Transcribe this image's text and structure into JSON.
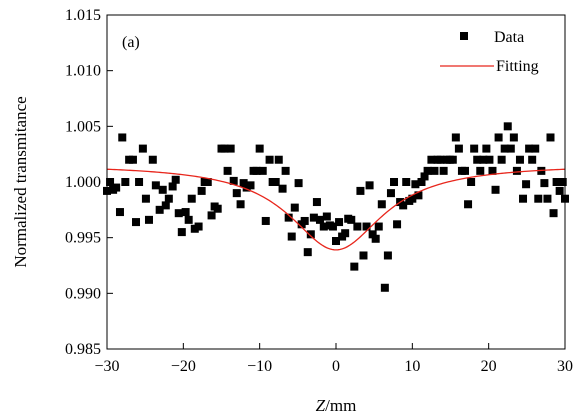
{
  "chart_data": {
    "type": "scatter",
    "panel_label": "(a)",
    "xlabel_italic": "Z",
    "xlabel_unit": "/mm",
    "ylabel": "Normalized transmitance",
    "xlim": [
      -30,
      30
    ],
    "ylim": [
      0.985,
      1.015
    ],
    "xticks": [
      -30,
      -20,
      -10,
      0,
      10,
      20,
      30
    ],
    "xtick_labels": [
      "−30",
      "−20",
      "−10",
      "0",
      "10",
      "20",
      "30"
    ],
    "yticks": [
      0.985,
      0.99,
      0.995,
      1.0,
      1.005,
      1.01,
      1.015
    ],
    "ytick_labels": [
      "0.985",
      "0.990",
      "0.995",
      "1.000",
      "1.005",
      "1.010",
      "1.015"
    ],
    "grid": false,
    "legend_position": "top-right",
    "series": [
      {
        "name": "Data",
        "marker": "square",
        "color": "#000000",
        "points": [
          [
            -30.0,
            0.9992
          ],
          [
            -29.6,
            1.0
          ],
          [
            -29.2,
            0.9993
          ],
          [
            -28.8,
            0.9995
          ],
          [
            -28.3,
            0.9973
          ],
          [
            -28.0,
            1.004
          ],
          [
            -27.6,
            1.0
          ],
          [
            -27.1,
            1.002
          ],
          [
            -26.6,
            1.002
          ],
          [
            -26.2,
            0.9964
          ],
          [
            -25.8,
            1.0
          ],
          [
            -25.3,
            1.003
          ],
          [
            -24.9,
            0.9985
          ],
          [
            -24.5,
            0.9966
          ],
          [
            -24.0,
            1.002
          ],
          [
            -23.6,
            0.9997
          ],
          [
            -23.1,
            0.9975
          ],
          [
            -22.7,
            0.9993
          ],
          [
            -22.3,
            0.9979
          ],
          [
            -21.9,
            0.9985
          ],
          [
            -21.4,
            0.9996
          ],
          [
            -21.0,
            1.0002
          ],
          [
            -20.6,
            0.9972
          ],
          [
            -20.2,
            0.9955
          ],
          [
            -19.7,
            0.9973
          ],
          [
            -19.3,
            0.9966
          ],
          [
            -18.9,
            0.9985
          ],
          [
            -18.5,
            0.9958
          ],
          [
            -18.0,
            0.996
          ],
          [
            -17.6,
            0.9992
          ],
          [
            -17.2,
            1.0
          ],
          [
            -16.8,
            1.0
          ],
          [
            -16.3,
            0.997
          ],
          [
            -15.9,
            0.9978
          ],
          [
            -15.5,
            0.9976
          ],
          [
            -15.0,
            1.003
          ],
          [
            -14.6,
            1.003
          ],
          [
            -14.2,
            1.001
          ],
          [
            -13.8,
            1.003
          ],
          [
            -13.4,
            1.0001
          ],
          [
            -13.0,
            0.999
          ],
          [
            -12.5,
            0.998
          ],
          [
            -12.1,
            0.9999
          ],
          [
            -11.7,
            0.9995
          ],
          [
            -11.2,
            0.9997
          ],
          [
            -10.8,
            1.001
          ],
          [
            -10.4,
            1.001
          ],
          [
            -10.0,
            1.003
          ],
          [
            -9.6,
            1.001
          ],
          [
            -9.2,
            0.9965
          ],
          [
            -8.7,
            1.002
          ],
          [
            -8.3,
            1.0
          ],
          [
            -7.9,
            1.0
          ],
          [
            -7.5,
            1.002
          ],
          [
            -7.0,
            0.9994
          ],
          [
            -6.6,
            1.001
          ],
          [
            -6.2,
            0.9968
          ],
          [
            -5.8,
            0.9951
          ],
          [
            -5.4,
            0.9977
          ],
          [
            -4.9,
            0.9999
          ],
          [
            -4.5,
            0.9962
          ],
          [
            -4.1,
            0.9965
          ],
          [
            -3.7,
            0.9937
          ],
          [
            -3.3,
            0.9953
          ],
          [
            -2.9,
            0.9968
          ],
          [
            -2.5,
            0.9982
          ],
          [
            -2.1,
            0.9966
          ],
          [
            -1.6,
            0.996
          ],
          [
            -1.2,
            0.9969
          ],
          [
            -0.8,
            0.9961
          ],
          [
            -0.4,
            0.996
          ],
          [
            0.0,
            0.9947
          ],
          [
            0.4,
            0.9964
          ],
          [
            0.8,
            0.9951
          ],
          [
            1.2,
            0.9954
          ],
          [
            1.6,
            0.9967
          ],
          [
            2.0,
            0.9966
          ],
          [
            2.4,
            0.9924
          ],
          [
            2.8,
            0.996
          ],
          [
            3.2,
            0.9992
          ],
          [
            3.6,
            0.9934
          ],
          [
            4.0,
            0.996
          ],
          [
            4.4,
            0.9997
          ],
          [
            4.8,
            0.9953
          ],
          [
            5.2,
            0.9949
          ],
          [
            5.6,
            0.996
          ],
          [
            6.0,
            0.998
          ],
          [
            6.4,
            0.9905
          ],
          [
            6.8,
            0.9934
          ],
          [
            7.2,
            0.999
          ],
          [
            7.6,
            1.0
          ],
          [
            8.0,
            0.9962
          ],
          [
            8.4,
            0.9982
          ],
          [
            8.8,
            0.9979
          ],
          [
            9.2,
            1.0
          ],
          [
            9.6,
            0.9983
          ],
          [
            10.0,
            0.9985
          ],
          [
            10.4,
            0.9998
          ],
          [
            10.8,
            0.9988
          ],
          [
            11.2,
            1.0
          ],
          [
            11.6,
            1.0005
          ],
          [
            12.0,
            1.001
          ],
          [
            12.5,
            1.002
          ],
          [
            12.9,
            1.001
          ],
          [
            13.3,
            1.002
          ],
          [
            13.7,
            1.002
          ],
          [
            14.1,
            1.001
          ],
          [
            14.5,
            1.002
          ],
          [
            14.9,
            1.002
          ],
          [
            15.3,
            1.002
          ],
          [
            15.7,
            1.004
          ],
          [
            16.1,
            1.003
          ],
          [
            16.5,
            1.001
          ],
          [
            16.9,
            1.001
          ],
          [
            17.3,
            0.998
          ],
          [
            17.7,
            1.0
          ],
          [
            18.1,
            1.003
          ],
          [
            18.5,
            1.002
          ],
          [
            18.9,
            1.001
          ],
          [
            19.3,
            1.002
          ],
          [
            19.7,
            1.003
          ],
          [
            20.1,
            1.002
          ],
          [
            20.5,
            1.001
          ],
          [
            20.9,
            0.9993
          ],
          [
            21.3,
            1.004
          ],
          [
            21.7,
            1.002
          ],
          [
            22.1,
            1.003
          ],
          [
            22.5,
            1.005
          ],
          [
            22.9,
            1.003
          ],
          [
            23.3,
            1.004
          ],
          [
            23.7,
            1.001
          ],
          [
            24.1,
            1.002
          ],
          [
            24.5,
            0.9985
          ],
          [
            24.9,
            0.9998
          ],
          [
            25.3,
            1.003
          ],
          [
            25.7,
            1.002
          ],
          [
            26.1,
            1.003
          ],
          [
            26.5,
            0.9985
          ],
          [
            26.9,
            1.001
          ],
          [
            27.3,
            0.9999
          ],
          [
            27.7,
            0.9985
          ],
          [
            28.1,
            1.004
          ],
          [
            28.5,
            0.9972
          ],
          [
            28.9,
            1.0
          ],
          [
            29.3,
            0.9992
          ],
          [
            29.7,
            1.0
          ],
          [
            30.0,
            0.9985
          ]
        ]
      },
      {
        "name": "Fitting",
        "line": true,
        "color": "#e8261c",
        "baseline": 1.0016,
        "min_value": 0.9939,
        "center": 0.0,
        "halfwidth": 7.5,
        "x": [
          -30,
          -25,
          -20,
          -15,
          -12,
          -10,
          -8,
          -6,
          -4,
          -2,
          0,
          2,
          4,
          6,
          8,
          10,
          12,
          15,
          20,
          25,
          30
        ],
        "y": [
          1.0014,
          1.0012,
          1.0009,
          1.0004,
          0.9998,
          0.9993,
          0.9986,
          0.9976,
          0.9962,
          0.9946,
          0.9939,
          0.9946,
          0.9962,
          0.9976,
          0.9986,
          0.9993,
          0.9998,
          1.0004,
          1.0009,
          1.0012,
          1.0014
        ]
      }
    ]
  }
}
